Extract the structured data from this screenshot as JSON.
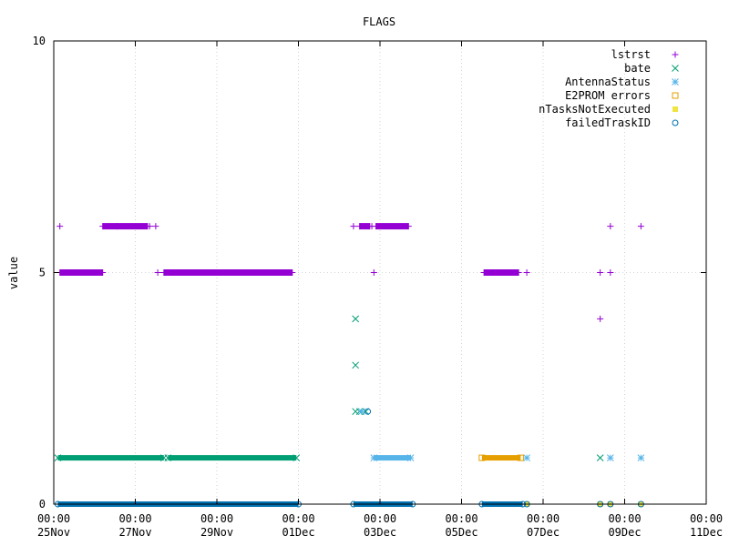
{
  "chart_data": {
    "type": "scatter",
    "title": "FLAGS",
    "xlabel": "",
    "ylabel": "value",
    "x_unit": "days",
    "xlim": [
      0,
      16
    ],
    "ylim": [
      0,
      10
    ],
    "y_ticks": [
      "0",
      "5",
      "10"
    ],
    "x_ticks": [
      {
        "x": 0,
        "time": "00:00",
        "date": "25Nov"
      },
      {
        "x": 2,
        "time": "00:00",
        "date": "27Nov"
      },
      {
        "x": 4,
        "time": "00:00",
        "date": "29Nov"
      },
      {
        "x": 6,
        "time": "00:00",
        "date": "01Dec"
      },
      {
        "x": 8,
        "time": "00:00",
        "date": "03Dec"
      },
      {
        "x": 10,
        "time": "00:00",
        "date": "05Dec"
      },
      {
        "x": 12,
        "time": "00:00",
        "date": "07Dec"
      },
      {
        "x": 14,
        "time": "00:00",
        "date": "09Dec"
      },
      {
        "x": 16,
        "time": "00:00",
        "date": "11Dec"
      }
    ],
    "grid": true,
    "legend_position": "top-right",
    "series": [
      {
        "name": "lstrst",
        "marker": "plus",
        "color": "#9400d3",
        "runs": [
          [
            0.15,
            1.2,
            5
          ],
          [
            1.2,
            1.55,
            6
          ],
          [
            1.55,
            2.3,
            6
          ],
          [
            2.7,
            5.85,
            5
          ],
          [
            7.5,
            7.75,
            6
          ],
          [
            7.9,
            8.7,
            6
          ],
          [
            10.55,
            11.4,
            5
          ]
        ],
        "points": [
          [
            0.15,
            6
          ],
          [
            2.35,
            6
          ],
          [
            2.5,
            6
          ],
          [
            2.55,
            5
          ],
          [
            7.35,
            6
          ],
          [
            7.8,
            6
          ],
          [
            7.85,
            5
          ],
          [
            11.6,
            5
          ],
          [
            13.4,
            5
          ],
          [
            13.4,
            4
          ],
          [
            13.65,
            6
          ],
          [
            13.65,
            5
          ],
          [
            14.4,
            6
          ]
        ]
      },
      {
        "name": "bate",
        "marker": "x",
        "color": "#009e73",
        "runs": [
          [
            0.1,
            2.7,
            1
          ],
          [
            2.8,
            5.95,
            1
          ]
        ],
        "points": [
          [
            7.4,
            4
          ],
          [
            7.4,
            3
          ],
          [
            7.4,
            2
          ],
          [
            7.5,
            2
          ],
          [
            7.65,
            2
          ],
          [
            13.4,
            1
          ]
        ]
      },
      {
        "name": "AntennaStatus",
        "marker": "star",
        "color": "#56b4e9",
        "runs": [
          [
            7.85,
            8.75,
            1
          ]
        ],
        "points": [
          [
            7.55,
            2
          ],
          [
            11.6,
            1
          ],
          [
            13.65,
            1
          ],
          [
            14.4,
            1
          ]
        ]
      },
      {
        "name": "E2PROM errors",
        "marker": "square-open",
        "color": "#e69f00",
        "runs": [
          [
            10.5,
            11.45,
            1
          ]
        ],
        "points": []
      },
      {
        "name": "nTasksNotExecuted",
        "marker": "square-filled",
        "color": "#f0e442",
        "runs": [],
        "points": [
          [
            11.6,
            0
          ],
          [
            13.4,
            0
          ],
          [
            13.65,
            0
          ],
          [
            14.4,
            0
          ]
        ]
      },
      {
        "name": "failedTraskID",
        "marker": "circle-open",
        "color": "#0072b2",
        "runs": [
          [
            0.1,
            6.0,
            0
          ],
          [
            7.35,
            8.8,
            0
          ],
          [
            10.5,
            11.5,
            0
          ]
        ],
        "points": [
          [
            7.7,
            2
          ],
          [
            11.6,
            0
          ],
          [
            13.4,
            0
          ],
          [
            13.65,
            0
          ],
          [
            14.4,
            0
          ]
        ]
      }
    ]
  }
}
